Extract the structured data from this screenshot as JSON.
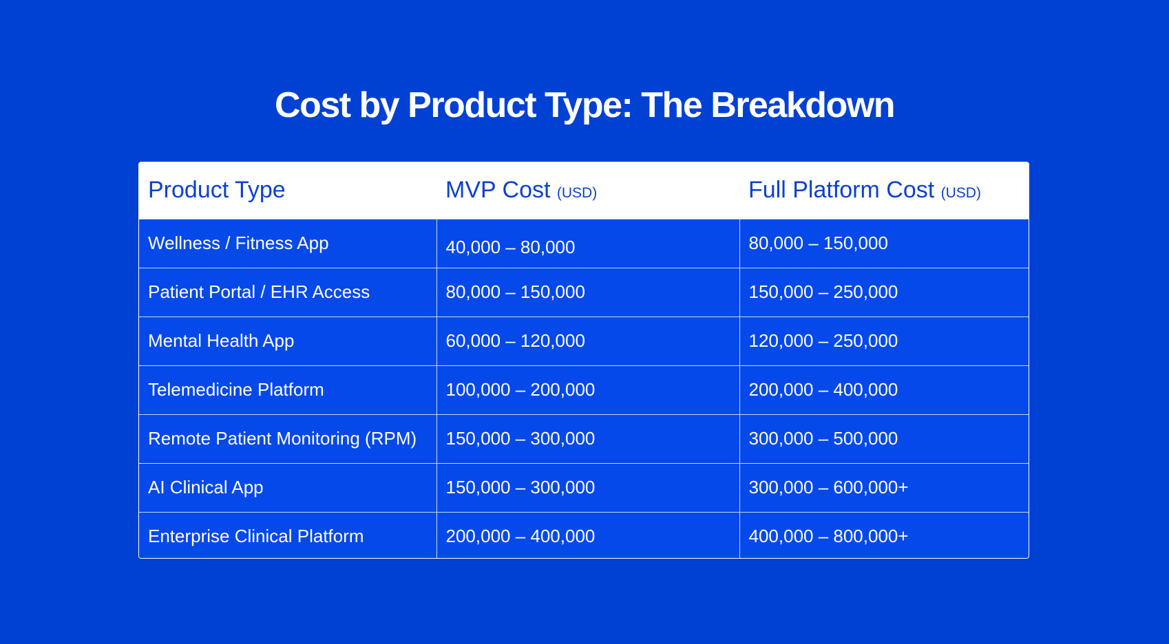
{
  "title": "Cost by Product Type: The Breakdown",
  "table": {
    "headers": {
      "product_type": "Product Type",
      "mvp_cost": "MVP Cost",
      "mvp_unit": "(USD)",
      "full_cost": "Full Platform Cost",
      "full_unit": "(USD)"
    },
    "rows": [
      {
        "product": "Wellness / Fitness App",
        "mvp": "40,000 – 80,000",
        "full": "80,000 – 150,000"
      },
      {
        "product": "Patient Portal / EHR Access",
        "mvp": "80,000 – 150,000",
        "full": "150,000 – 250,000"
      },
      {
        "product": "Mental Health App",
        "mvp": "60,000 – 120,000",
        "full": "120,000 – 250,000"
      },
      {
        "product": "Telemedicine Platform",
        "mvp": "100,000 – 200,000",
        "full": "200,000 – 400,000"
      },
      {
        "product": "Remote Patient Monitoring (RPM)",
        "mvp": "150,000 – 300,000",
        "full": "300,000 – 500,000"
      },
      {
        "product": "AI Clinical App",
        "mvp": "150,000 – 300,000",
        "full": "300,000 – 600,000+"
      },
      {
        "product": "Enterprise Clinical Platform",
        "mvp": "200,000 – 400,000",
        "full": "400,000 – 800,000+"
      }
    ]
  },
  "colors": {
    "background": "#0041d3",
    "row_background": "#0549ea",
    "header_background": "#ffffff",
    "header_text": "#0a42cf",
    "text": "#ffffff"
  }
}
